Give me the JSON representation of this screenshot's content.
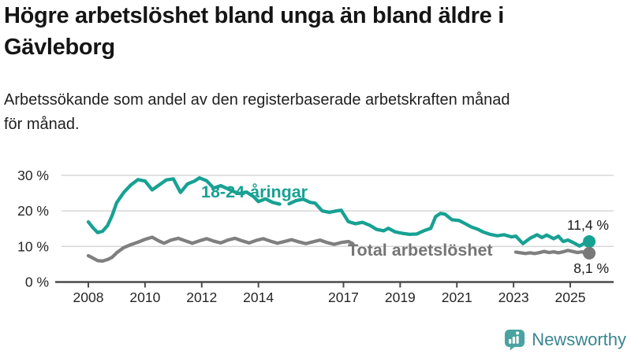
{
  "header": {
    "title": "Högre arbetslöshet bland unga än bland äldre i\nGävleborg",
    "subtitle": "Arbetssökande som andel av den registerbaserade arbetskraften månad\nför månad."
  },
  "chart_data": {
    "type": "line",
    "title": "Högre arbetslöshet bland unga än bland äldre i Gävleborg",
    "subtitle": "Arbetssökande som andel av den registerbaserade arbetskraften månad för månad.",
    "xlabel": "",
    "ylabel": "",
    "unit": "%",
    "grid": "horizontal",
    "legend": "inline-labels",
    "x_axis": {
      "tick_labels": [
        "2008",
        "2010",
        "2012",
        "2014",
        "2017",
        "2019",
        "2021",
        "2023",
        "2025"
      ],
      "tick_values": [
        2008,
        2010,
        2012,
        2014,
        2017,
        2019,
        2021,
        2023,
        2025
      ],
      "range": [
        2006.8,
        2026.5
      ]
    },
    "y_axis": {
      "tick_labels": [
        "0 %",
        "10 %",
        "20 %",
        "30 %"
      ],
      "tick_values": [
        0,
        10,
        20,
        30
      ],
      "range": [
        0,
        31
      ]
    },
    "colors": {
      "youth_line": "#17a193",
      "total_line": "#7f7f7f",
      "total_label": "#757575",
      "gridline": "#d8d8d8",
      "axis": "#4a4a4a",
      "tick_text": "#262626",
      "end_label_text": "#1a1a1a"
    },
    "series": [
      {
        "name": "18-24-åringar",
        "color": "#17a193",
        "end_value": 11.4,
        "end_label": "11,4 %",
        "points": [
          [
            2008.0,
            16.9
          ],
          [
            2008.17,
            15.2
          ],
          [
            2008.33,
            13.9
          ],
          [
            2008.5,
            14.3
          ],
          [
            2008.67,
            15.8
          ],
          [
            2008.83,
            18.5
          ],
          [
            2009.0,
            22.3
          ],
          [
            2009.25,
            25.2
          ],
          [
            2009.5,
            27.3
          ],
          [
            2009.75,
            28.8
          ],
          [
            2010.0,
            28.4
          ],
          [
            2010.25,
            25.9
          ],
          [
            2010.5,
            27.3
          ],
          [
            2010.75,
            28.7
          ],
          [
            2011.0,
            29.0
          ],
          [
            2011.25,
            25.2
          ],
          [
            2011.5,
            27.6
          ],
          [
            2011.75,
            28.4
          ],
          [
            2011.92,
            29.3
          ],
          [
            2012.17,
            28.5
          ],
          [
            2012.42,
            26.4
          ],
          [
            2012.67,
            27.1
          ],
          [
            2012.92,
            26.2
          ],
          [
            2013.17,
            25.3
          ],
          [
            2013.33,
            24.9
          ],
          [
            2013.58,
            25.3
          ],
          [
            2013.83,
            24.0
          ],
          [
            2014.0,
            22.6
          ],
          [
            2014.25,
            23.4
          ],
          [
            2014.5,
            22.4
          ],
          [
            2014.75,
            21.9
          ],
          [
            2014.92,
            null
          ],
          [
            2015.08,
            22.0
          ],
          [
            2015.33,
            22.9
          ],
          [
            2015.58,
            23.3
          ],
          [
            2015.83,
            22.4
          ],
          [
            2016.0,
            22.2
          ],
          [
            2016.25,
            20.0
          ],
          [
            2016.5,
            19.6
          ],
          [
            2016.75,
            20.0
          ],
          [
            2016.92,
            20.2
          ],
          [
            2017.17,
            17.0
          ],
          [
            2017.42,
            16.4
          ],
          [
            2017.67,
            16.8
          ],
          [
            2017.92,
            16.0
          ],
          [
            2018.17,
            14.8
          ],
          [
            2018.42,
            14.4
          ],
          [
            2018.58,
            15.1
          ],
          [
            2018.83,
            14.1
          ],
          [
            2019.08,
            13.7
          ],
          [
            2019.33,
            13.4
          ],
          [
            2019.58,
            13.5
          ],
          [
            2019.83,
            14.4
          ],
          [
            2020.08,
            15.1
          ],
          [
            2020.25,
            18.4
          ],
          [
            2020.42,
            19.3
          ],
          [
            2020.58,
            19.1
          ],
          [
            2020.83,
            17.5
          ],
          [
            2021.08,
            17.3
          ],
          [
            2021.25,
            16.6
          ],
          [
            2021.5,
            15.5
          ],
          [
            2021.75,
            14.8
          ],
          [
            2021.92,
            14.1
          ],
          [
            2022.17,
            13.4
          ],
          [
            2022.42,
            13.0
          ],
          [
            2022.67,
            13.3
          ],
          [
            2022.92,
            12.7
          ],
          [
            2023.08,
            12.9
          ],
          [
            2023.33,
            10.8
          ],
          [
            2023.58,
            12.3
          ],
          [
            2023.83,
            13.3
          ],
          [
            2024.0,
            12.5
          ],
          [
            2024.17,
            13.2
          ],
          [
            2024.42,
            12.2
          ],
          [
            2024.58,
            12.9
          ],
          [
            2024.75,
            11.4
          ],
          [
            2024.92,
            11.8
          ],
          [
            2025.08,
            11.2
          ],
          [
            2025.33,
            10.1
          ],
          [
            2025.5,
            10.9
          ],
          [
            2025.67,
            11.4
          ]
        ]
      },
      {
        "name": "Total arbetslöshet",
        "color": "#7f7f7f",
        "end_value": 8.1,
        "end_label": "8,1 %",
        "points": [
          [
            2008.0,
            7.4
          ],
          [
            2008.17,
            6.7
          ],
          [
            2008.33,
            6.0
          ],
          [
            2008.5,
            5.9
          ],
          [
            2008.67,
            6.3
          ],
          [
            2008.83,
            6.9
          ],
          [
            2009.0,
            8.2
          ],
          [
            2009.25,
            9.7
          ],
          [
            2009.5,
            10.5
          ],
          [
            2009.75,
            11.2
          ],
          [
            2010.0,
            12.0
          ],
          [
            2010.25,
            12.6
          ],
          [
            2010.5,
            11.5
          ],
          [
            2010.67,
            10.9
          ],
          [
            2010.92,
            11.8
          ],
          [
            2011.17,
            12.3
          ],
          [
            2011.42,
            11.6
          ],
          [
            2011.67,
            10.9
          ],
          [
            2011.92,
            11.6
          ],
          [
            2012.17,
            12.2
          ],
          [
            2012.42,
            11.5
          ],
          [
            2012.67,
            11.0
          ],
          [
            2012.92,
            11.8
          ],
          [
            2013.17,
            12.3
          ],
          [
            2013.42,
            11.6
          ],
          [
            2013.67,
            11.0
          ],
          [
            2013.92,
            11.7
          ],
          [
            2014.17,
            12.2
          ],
          [
            2014.42,
            11.5
          ],
          [
            2014.67,
            10.9
          ],
          [
            2014.92,
            11.4
          ],
          [
            2015.17,
            11.9
          ],
          [
            2015.42,
            11.3
          ],
          [
            2015.67,
            10.8
          ],
          [
            2015.92,
            11.3
          ],
          [
            2016.17,
            11.8
          ],
          [
            2016.42,
            11.1
          ],
          [
            2016.67,
            10.6
          ],
          [
            2016.92,
            11.1
          ],
          [
            2017.17,
            11.4
          ],
          [
            2017.33,
            10.8
          ],
          [
            2017.5,
            null
          ],
          [
            2023.08,
            8.4
          ],
          [
            2023.25,
            8.2
          ],
          [
            2023.42,
            8.0
          ],
          [
            2023.58,
            8.2
          ],
          [
            2023.75,
            8.0
          ],
          [
            2023.92,
            8.3
          ],
          [
            2024.08,
            8.6
          ],
          [
            2024.25,
            8.3
          ],
          [
            2024.42,
            8.5
          ],
          [
            2024.58,
            8.2
          ],
          [
            2024.75,
            8.5
          ],
          [
            2024.92,
            8.9
          ],
          [
            2025.08,
            8.6
          ],
          [
            2025.25,
            8.3
          ],
          [
            2025.42,
            8.5
          ],
          [
            2025.58,
            8.0
          ],
          [
            2025.67,
            8.1
          ]
        ]
      }
    ]
  },
  "footer": {
    "brand": "Newsworthy",
    "logo_color": "#4aa3a1",
    "text_color": "#3a8590"
  }
}
